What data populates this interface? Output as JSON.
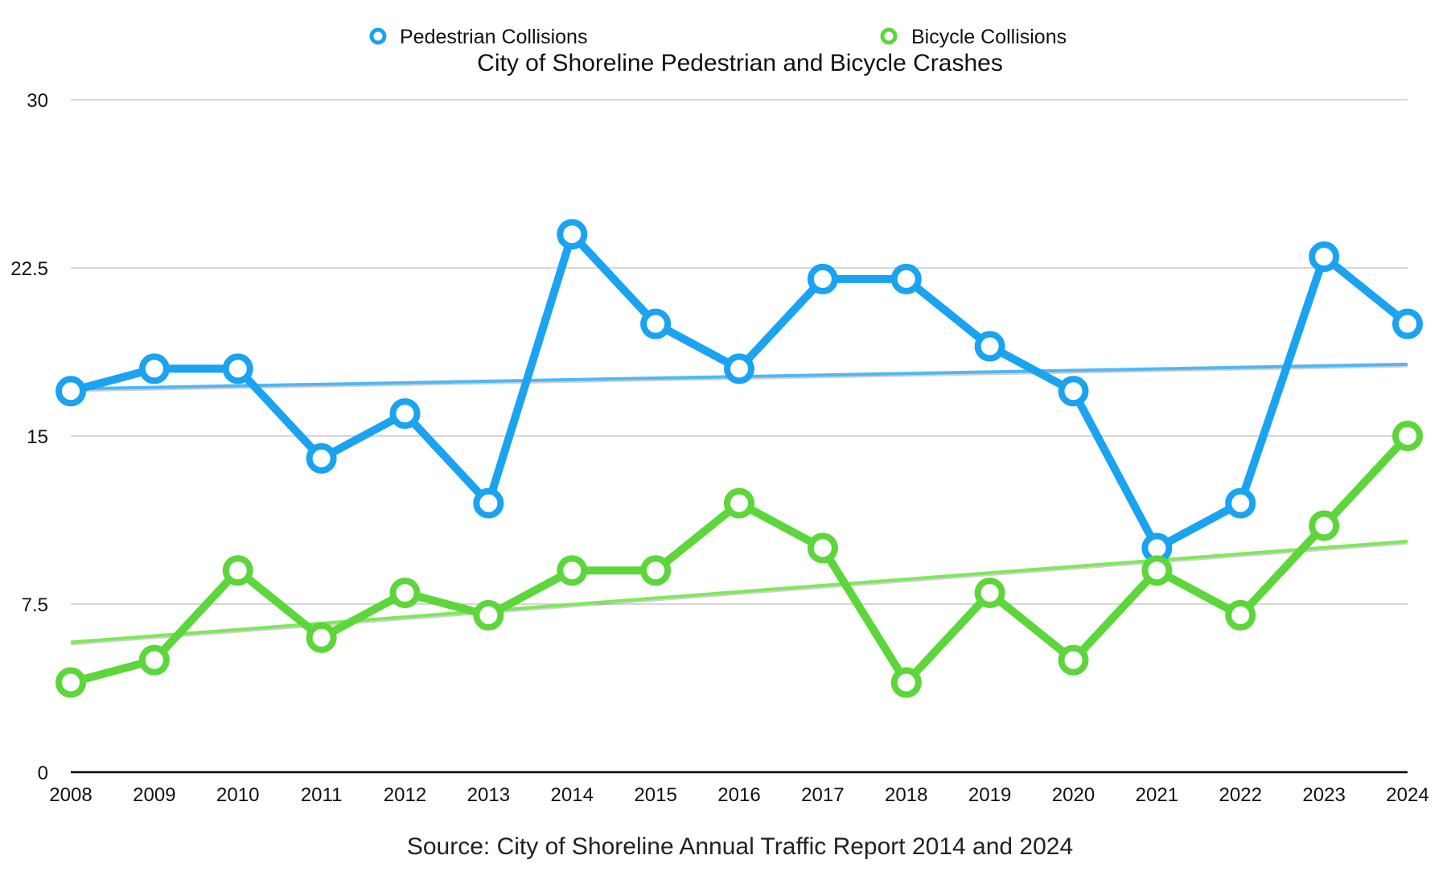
{
  "chart_data": {
    "type": "line",
    "title": "City of Shoreline Pedestrian and Bicycle Crashes",
    "source": "Source: City of Shoreline Annual Traffic Report 2014 and 2024",
    "xlabel": "",
    "ylabel": "",
    "categories": [
      "2008",
      "2009",
      "2010",
      "2011",
      "2012",
      "2013",
      "2014",
      "2015",
      "2016",
      "2017",
      "2018",
      "2019",
      "2020",
      "2021",
      "2022",
      "2023",
      "2024"
    ],
    "ylim": [
      0,
      30
    ],
    "yticks": [
      0,
      7.5,
      15,
      22.5,
      30
    ],
    "ytick_labels": [
      "0",
      "7.5",
      "15",
      "22.5",
      "30"
    ],
    "grid": true,
    "legend_position": "top-center",
    "series": [
      {
        "name": "Pedestrian Collisions",
        "color": "#1aa3f0",
        "trend_color": "#4fb8f2",
        "values": [
          17,
          18,
          18,
          14,
          16,
          12,
          24,
          20,
          18,
          22,
          22,
          19,
          17,
          10,
          12,
          23,
          20
        ],
        "trendline": [
          17.1,
          18.2
        ]
      },
      {
        "name": "Bicycle Collisions",
        "color": "#5cd63a",
        "trend_color": "#7fe85a",
        "values": [
          4,
          5,
          9,
          6,
          8,
          7,
          9,
          9,
          12,
          10,
          4,
          8,
          5,
          9,
          7,
          11,
          15
        ],
        "trendline": [
          5.8,
          10.3
        ]
      }
    ]
  }
}
